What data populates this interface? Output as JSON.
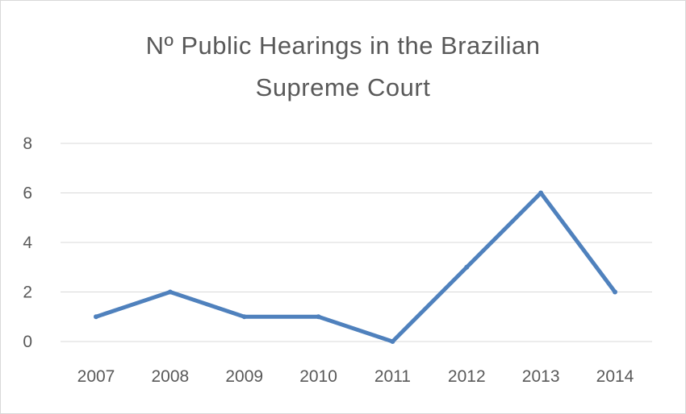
{
  "chart_data": {
    "type": "line",
    "title_lines": [
      "Nº Public Hearings in the Brazilian",
      "Supreme Court"
    ],
    "categories": [
      "2007",
      "2008",
      "2009",
      "2010",
      "2011",
      "2012",
      "2013",
      "2014"
    ],
    "values": [
      1,
      2,
      1,
      1,
      0,
      3,
      6,
      2
    ],
    "ylim": [
      0,
      8
    ],
    "yticks": [
      "0",
      "2",
      "4",
      "6",
      "8"
    ],
    "xlabel": "",
    "ylabel": "",
    "grid": true,
    "legend": "none",
    "line_color": "#4f81bd",
    "grid_color": "#d9d9d9"
  }
}
